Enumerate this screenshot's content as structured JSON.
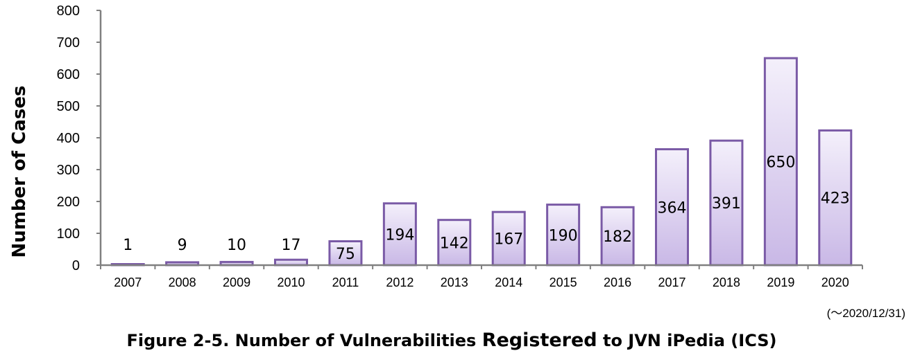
{
  "chart_data": {
    "type": "bar",
    "categories": [
      "2007",
      "2008",
      "2009",
      "2010",
      "2011",
      "2012",
      "2013",
      "2014",
      "2015",
      "2016",
      "2017",
      "2018",
      "2019",
      "2020"
    ],
    "values": [
      1,
      9,
      10,
      17,
      75,
      194,
      142,
      167,
      190,
      182,
      364,
      391,
      650,
      423
    ],
    "data_labels": [
      "1",
      "9",
      "10",
      "17",
      "75",
      "194",
      "142",
      "167",
      "190",
      "182",
      "364",
      "391",
      "650",
      "423"
    ],
    "title": "",
    "xlabel": "",
    "ylabel": "Number of Cases",
    "ylim": [
      0,
      800
    ],
    "yticks": [
      "0",
      "100",
      "200",
      "300",
      "400",
      "500",
      "600",
      "700",
      "800"
    ],
    "grid": false,
    "legend": "none",
    "note": "(～2020/12/31)",
    "caption_parts": [
      "Figure 2-5. Number of Vulnerabilities ",
      "Registered",
      " to JVN iPedia (ICS)"
    ],
    "colors": {
      "bar_fill_top": "#f4f0fb",
      "bar_fill_bottom": "#c9b8e6",
      "bar_stroke": "#7a5aa6",
      "axis": "#808080"
    }
  }
}
